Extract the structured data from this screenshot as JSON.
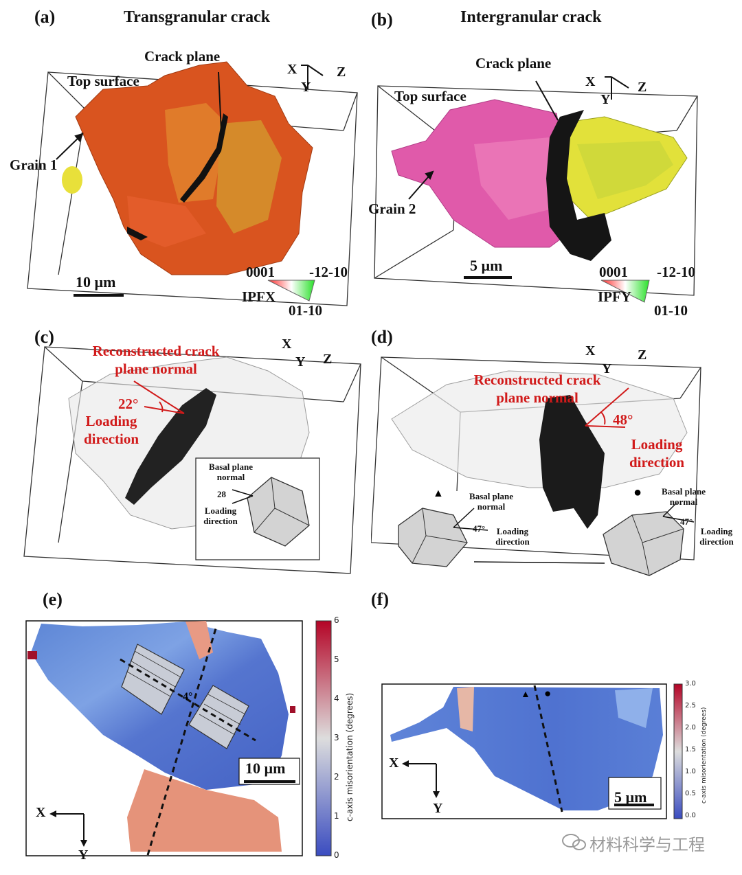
{
  "panels": {
    "a": {
      "letter": "(a)",
      "title": "Transgranular crack",
      "crack_plane": "Crack plane",
      "top_surface": "Top surface",
      "grain": "Grain 1",
      "scale": "10 µm",
      "ipf_top_left": "0001",
      "ipf_top_right": "-12-10",
      "ipf_name": "IPFX",
      "ipf_bottom": "01-10"
    },
    "b": {
      "letter": "(b)",
      "title": "Intergranular crack",
      "crack_plane": "Crack plane",
      "top_surface": "Top surface",
      "grain": "Grain 2",
      "scale": "5 µm",
      "ipf_top_left": "0001",
      "ipf_top_right": "-12-10",
      "ipf_name": "IPFY",
      "ipf_bottom": "01-10"
    },
    "c": {
      "letter": "(c)",
      "normal_label": "Reconstructed crack plane normal",
      "angle": "22°",
      "loading": "Loading direction",
      "basal": "Basal plane normal",
      "inset_angle": "28",
      "inset_loading": "Loading direction"
    },
    "d": {
      "letter": "(d)",
      "normal_label": "Reconstructed crack plane normal",
      "angle": "48°",
      "loading": "Loading direction",
      "basal_left": "Basal plane normal",
      "angle_left": "47°",
      "loading_left": "Loading direction",
      "basal_right": "Basal plane normal",
      "angle_right": "47°",
      "loading_right": "Loading direction",
      "marker_left": "▲",
      "marker_right": "●"
    },
    "e": {
      "letter": "(e)",
      "angle": "4°",
      "scale": "10 µm",
      "cb_label": "c-axis misorientation (degrees)",
      "cb_ticks": [
        "6",
        "5",
        "4",
        "3",
        "2",
        "1",
        "0"
      ]
    },
    "f": {
      "letter": "(f)",
      "scale": "5 µm",
      "cb_label": "c-axis misorientation (degrees)",
      "cb_ticks": [
        "3.0",
        "2.5",
        "2.0",
        "1.5",
        "1.0",
        "0.5",
        "0.0"
      ],
      "marker_left": "▲",
      "marker_right": "●"
    }
  },
  "axes": {
    "x": "X",
    "y": "Y",
    "z": "Z"
  },
  "watermark": "材料科学与工程"
}
